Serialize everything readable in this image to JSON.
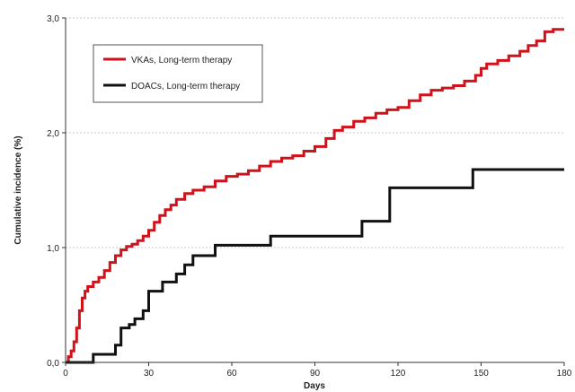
{
  "chart_data": {
    "type": "line",
    "title": "",
    "xlabel": "Days",
    "ylabel": "Cumulative incidence (%)",
    "xlim": [
      0,
      180
    ],
    "ylim": [
      0,
      3
    ],
    "x_ticks": [
      0,
      30,
      60,
      90,
      120,
      150,
      180
    ],
    "x_tick_labels": [
      "0",
      "30",
      "60",
      "90",
      "120",
      "150",
      "180"
    ],
    "y_ticks": [
      0,
      1,
      2,
      3
    ],
    "y_tick_labels": [
      "0,0",
      "1,0",
      "2,0",
      "3,0"
    ],
    "grid": "horizontal dashed",
    "legend_position": "top-left",
    "series": [
      {
        "name": "VKAs, Long-term therapy",
        "color": "#d0121b",
        "step": true,
        "points": [
          [
            0,
            0.0
          ],
          [
            1,
            0.05
          ],
          [
            2,
            0.1
          ],
          [
            3,
            0.18
          ],
          [
            4,
            0.3
          ],
          [
            5,
            0.45
          ],
          [
            6,
            0.56
          ],
          [
            7,
            0.62
          ],
          [
            8,
            0.66
          ],
          [
            10,
            0.7
          ],
          [
            12,
            0.74
          ],
          [
            14,
            0.8
          ],
          [
            16,
            0.87
          ],
          [
            18,
            0.93
          ],
          [
            20,
            0.98
          ],
          [
            22,
            1.01
          ],
          [
            24,
            1.03
          ],
          [
            26,
            1.06
          ],
          [
            28,
            1.1
          ],
          [
            30,
            1.15
          ],
          [
            32,
            1.22
          ],
          [
            34,
            1.28
          ],
          [
            36,
            1.33
          ],
          [
            38,
            1.37
          ],
          [
            40,
            1.42
          ],
          [
            43,
            1.47
          ],
          [
            46,
            1.5
          ],
          [
            50,
            1.53
          ],
          [
            54,
            1.58
          ],
          [
            58,
            1.62
          ],
          [
            62,
            1.64
          ],
          [
            66,
            1.67
          ],
          [
            70,
            1.71
          ],
          [
            74,
            1.75
          ],
          [
            78,
            1.78
          ],
          [
            82,
            1.8
          ],
          [
            86,
            1.84
          ],
          [
            90,
            1.88
          ],
          [
            94,
            1.95
          ],
          [
            97,
            2.02
          ],
          [
            100,
            2.05
          ],
          [
            104,
            2.1
          ],
          [
            108,
            2.13
          ],
          [
            112,
            2.17
          ],
          [
            116,
            2.2
          ],
          [
            120,
            2.22
          ],
          [
            124,
            2.28
          ],
          [
            128,
            2.33
          ],
          [
            132,
            2.37
          ],
          [
            136,
            2.39
          ],
          [
            140,
            2.41
          ],
          [
            144,
            2.45
          ],
          [
            148,
            2.5
          ],
          [
            150,
            2.56
          ],
          [
            152,
            2.6
          ],
          [
            156,
            2.63
          ],
          [
            160,
            2.67
          ],
          [
            164,
            2.71
          ],
          [
            167,
            2.76
          ],
          [
            170,
            2.8
          ],
          [
            173,
            2.88
          ],
          [
            176,
            2.9
          ],
          [
            180,
            2.9
          ]
        ]
      },
      {
        "name": "DOACs, Long-term therapy",
        "color": "#111111",
        "step": true,
        "points": [
          [
            0,
            0.0
          ],
          [
            9,
            0.0
          ],
          [
            10,
            0.07
          ],
          [
            17,
            0.07
          ],
          [
            18,
            0.15
          ],
          [
            20,
            0.3
          ],
          [
            23,
            0.33
          ],
          [
            25,
            0.38
          ],
          [
            28,
            0.45
          ],
          [
            30,
            0.62
          ],
          [
            35,
            0.7
          ],
          [
            40,
            0.77
          ],
          [
            43,
            0.85
          ],
          [
            46,
            0.93
          ],
          [
            54,
            1.02
          ],
          [
            74,
            1.1
          ],
          [
            107,
            1.23
          ],
          [
            117,
            1.52
          ],
          [
            147,
            1.68
          ],
          [
            180,
            1.68
          ]
        ]
      }
    ]
  }
}
